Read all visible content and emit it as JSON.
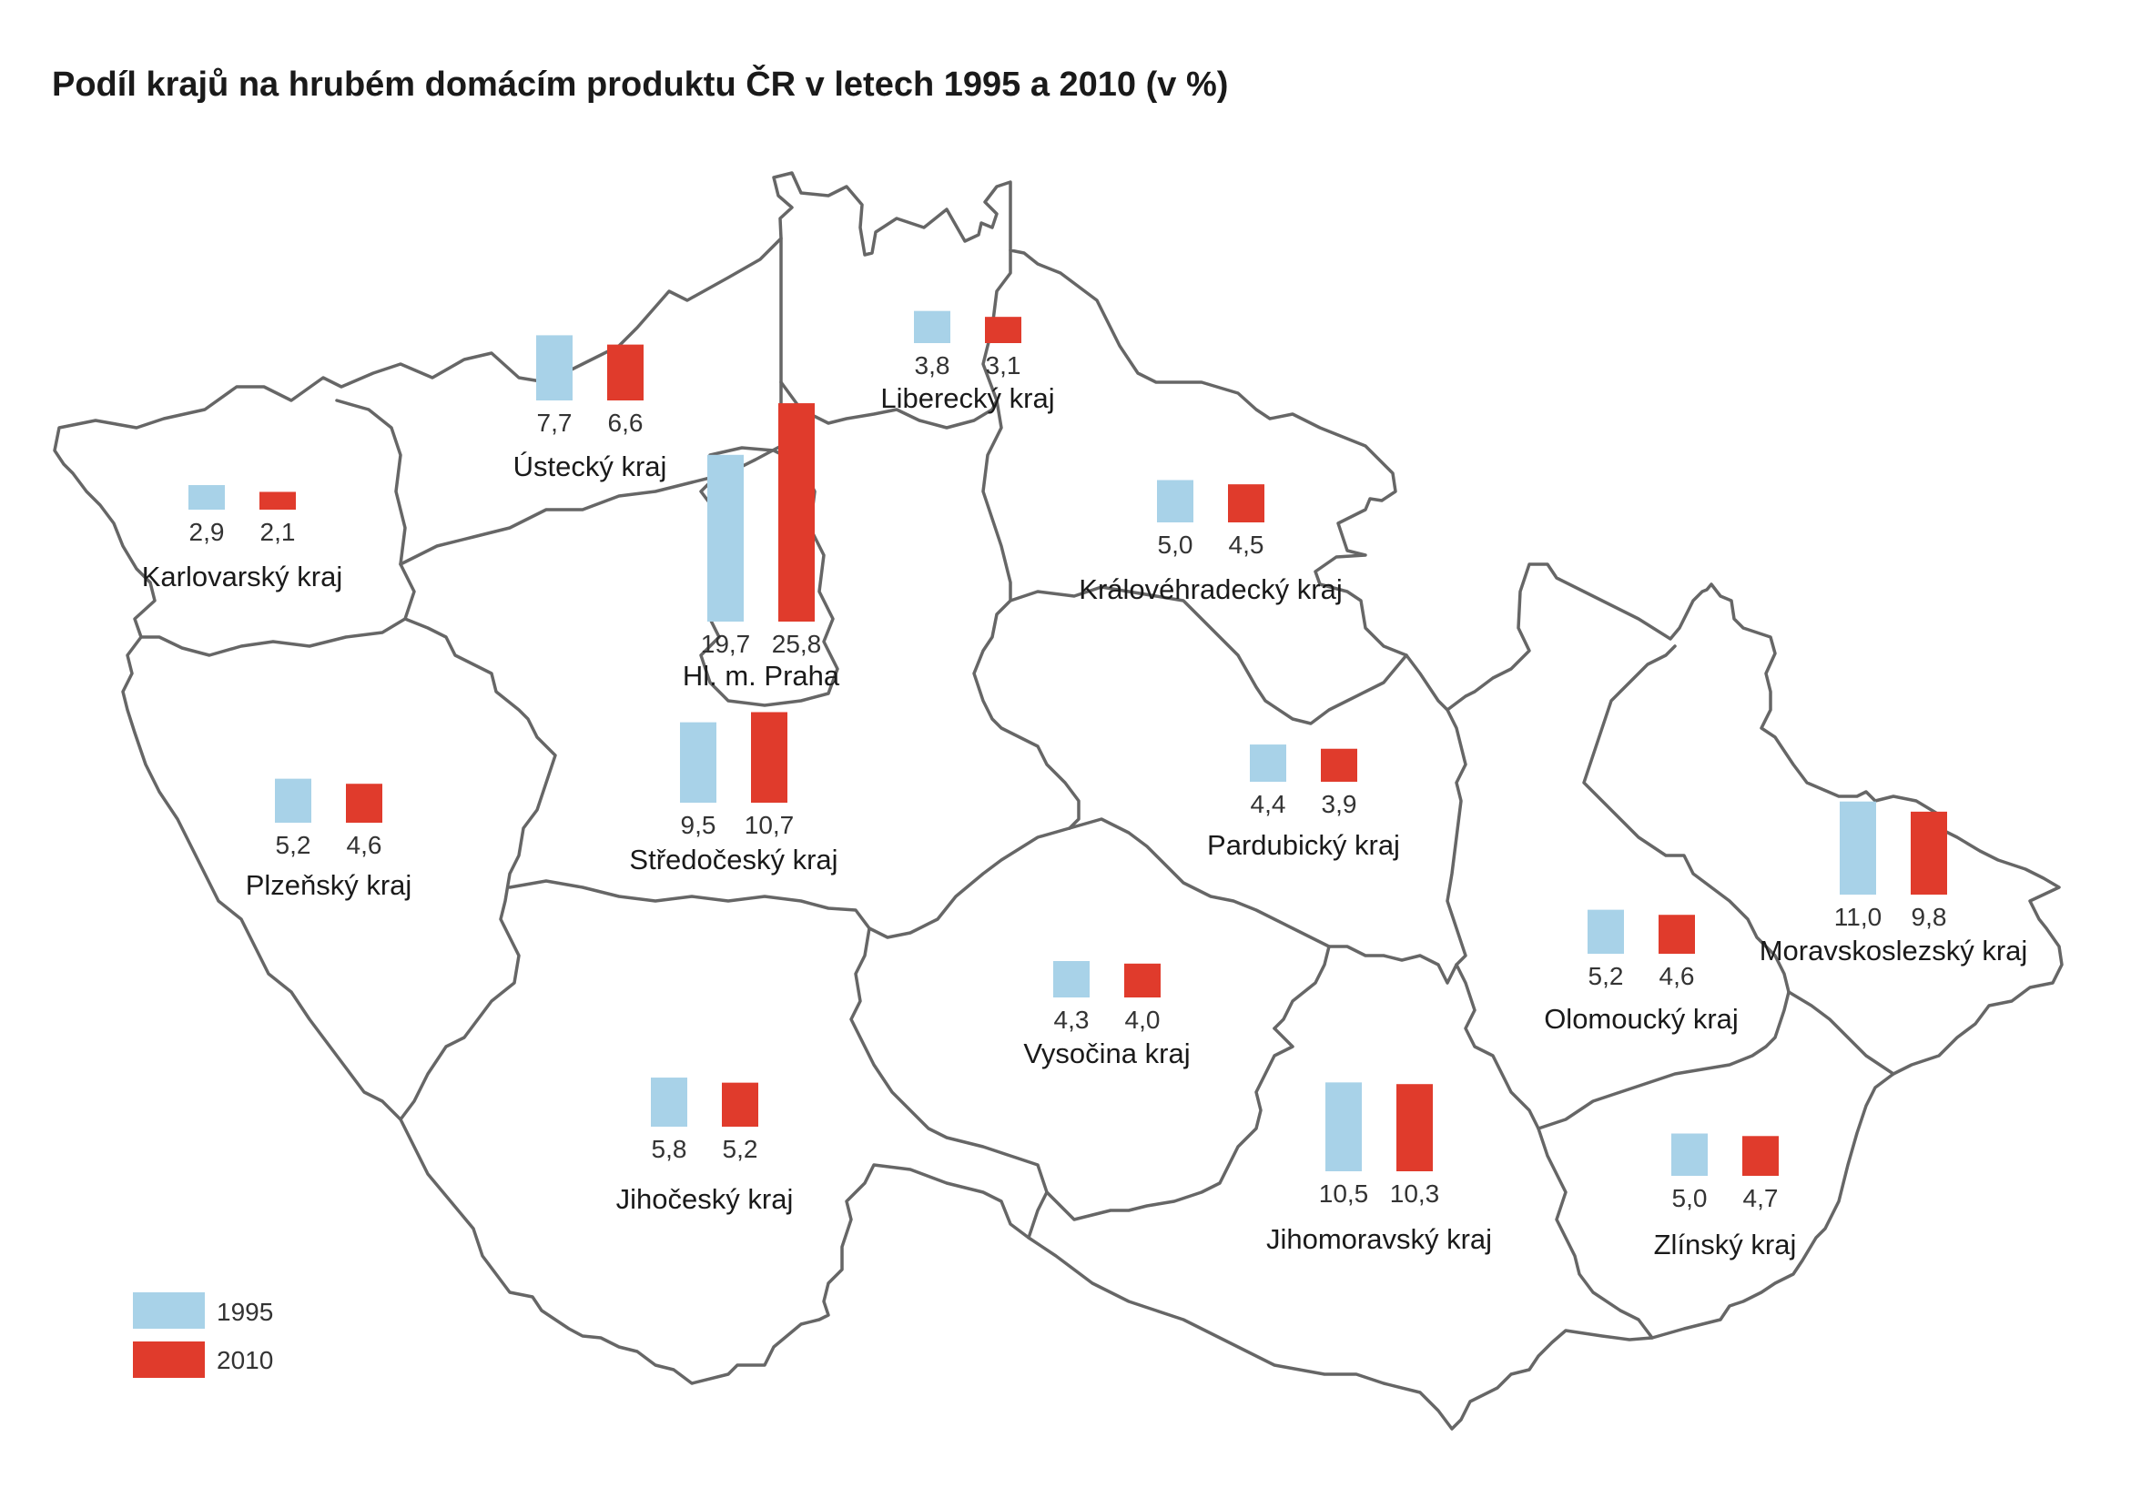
{
  "title": "Podíl krajů na hrubém domácím produktu ČR v letech 1995 a 2010 (v %)",
  "colors": {
    "y1995": "#a8d2e8",
    "y2010": "#e03b2c",
    "border": "#666666"
  },
  "legend": [
    {
      "year": "1995",
      "color": "#a8d2e8"
    },
    {
      "year": "2010",
      "color": "#e03b2c"
    }
  ],
  "regions": [
    {
      "id": "karlovarsky",
      "name": "Karlovarský kraj",
      "v1995": 2.9,
      "v2010": 2.1,
      "l1995": "2,9",
      "l2010": "2,1"
    },
    {
      "id": "ustecky",
      "name": "Ústecký kraj",
      "v1995": 7.7,
      "v2010": 6.6,
      "l1995": "7,7",
      "l2010": "6,6"
    },
    {
      "id": "liberecky",
      "name": "Liberecký kraj",
      "v1995": 3.8,
      "v2010": 3.1,
      "l1995": "3,8",
      "l2010": "3,1"
    },
    {
      "id": "kralovehradecky",
      "name": "Královéhradecký kraj",
      "v1995": 5.0,
      "v2010": 4.5,
      "l1995": "5,0",
      "l2010": "4,5"
    },
    {
      "id": "praha",
      "name": "Hl. m. Praha",
      "v1995": 19.7,
      "v2010": 25.8,
      "l1995": "19,7",
      "l2010": "25,8"
    },
    {
      "id": "stredocesky",
      "name": "Středočeský kraj",
      "v1995": 9.5,
      "v2010": 10.7,
      "l1995": "9,5",
      "l2010": "10,7"
    },
    {
      "id": "plzensky",
      "name": "Plzeňský kraj",
      "v1995": 5.2,
      "v2010": 4.6,
      "l1995": "5,2",
      "l2010": "4,6"
    },
    {
      "id": "pardubicky",
      "name": "Pardubický kraj",
      "v1995": 4.4,
      "v2010": 3.9,
      "l1995": "4,4",
      "l2010": "3,9"
    },
    {
      "id": "vysocina",
      "name": "Vysočina kraj",
      "v1995": 4.3,
      "v2010": 4.0,
      "l1995": "4,3",
      "l2010": "4,0"
    },
    {
      "id": "jihocesky",
      "name": "Jihočeský kraj",
      "v1995": 5.8,
      "v2010": 5.2,
      "l1995": "5,8",
      "l2010": "5,2"
    },
    {
      "id": "jihomoravsky",
      "name": "Jihomoravský kraj",
      "v1995": 10.5,
      "v2010": 10.3,
      "l1995": "10,5",
      "l2010": "10,3"
    },
    {
      "id": "olomoucky",
      "name": "Olomoucký kraj",
      "v1995": 5.2,
      "v2010": 4.6,
      "l1995": "5,2",
      "l2010": "4,6"
    },
    {
      "id": "moravskoslezsky",
      "name": "Moravskoslezský kraj",
      "v1995": 11.0,
      "v2010": 9.8,
      "l1995": "11,0",
      "l2010": "9,8"
    },
    {
      "id": "zlinsky",
      "name": "Zlínský kraj",
      "v1995": 5.0,
      "v2010": 4.7,
      "l1995": "5,0",
      "l2010": "4,7"
    }
  ]
}
